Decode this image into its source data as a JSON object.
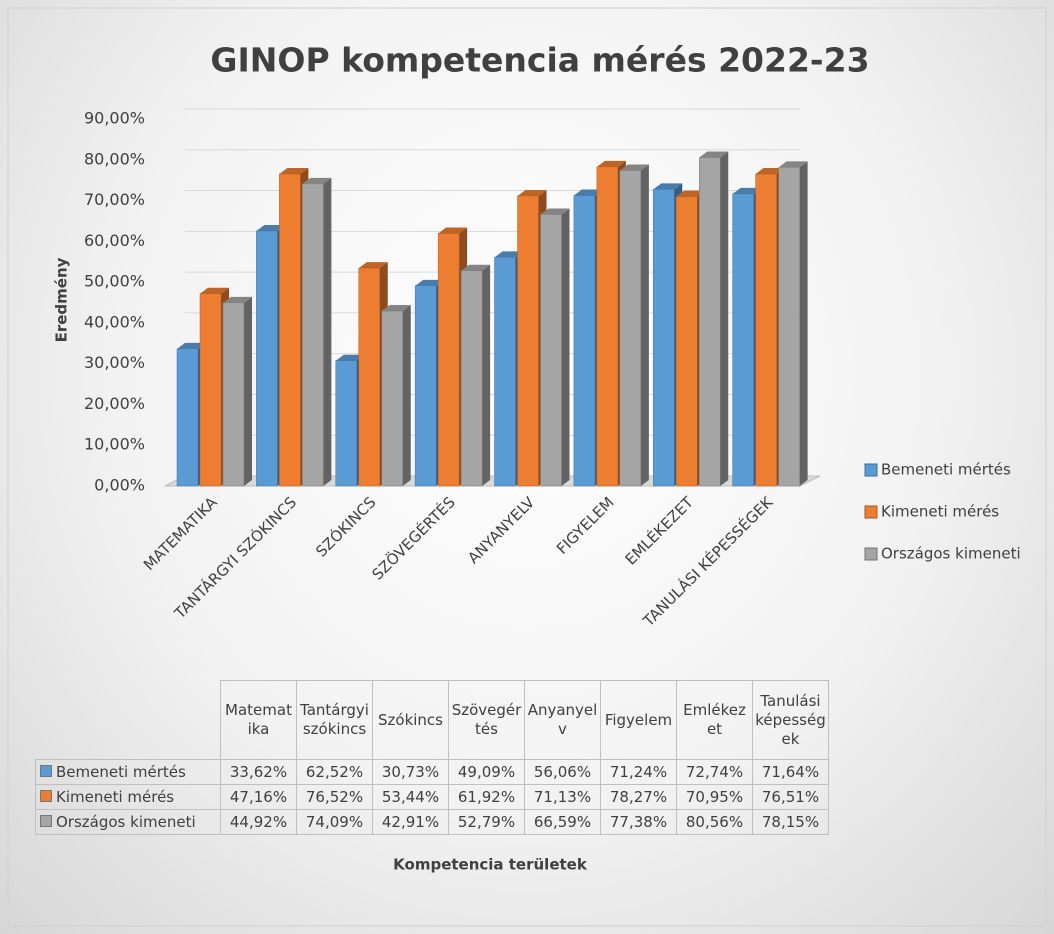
{
  "chart_data": {
    "type": "bar3d",
    "title": "GINOP kompetencia mérés 2022-23",
    "y_label": "Eredmény",
    "x_label": "Kompetencia területek",
    "categories": [
      "MATEMATIKA",
      "TANTÁRGYI SZÓKINCS",
      "SZÓKINCS",
      "SZÖVEGÉRTÉS",
      "ANYANYELV",
      "FIGYELEM",
      "EMLÉKEZET",
      "TANULÁSI KÉPESSÉGEK"
    ],
    "table_headers": [
      "Matematika",
      "Tantárgyi szókincs",
      "Szókincs",
      "Szövegértés",
      "Anyanyelv",
      "Figyelem",
      "Emlékezet",
      "Tanulási képességek"
    ],
    "series": [
      {
        "name": "Bemeneti mértés",
        "color": "#5b9bd5",
        "values": [
          33.62,
          62.52,
          30.73,
          49.09,
          56.06,
          71.24,
          72.74,
          71.64
        ],
        "value_labels": [
          "33,62%",
          "62,52%",
          "30,73%",
          "49,09%",
          "56,06%",
          "71,24%",
          "72,74%",
          "71,64%"
        ]
      },
      {
        "name": "Kimeneti mérés",
        "color": "#ed7d31",
        "values": [
          47.16,
          76.52,
          53.44,
          61.92,
          71.13,
          78.27,
          70.95,
          76.51
        ],
        "value_labels": [
          "47,16%",
          "76,52%",
          "53,44%",
          "61,92%",
          "71,13%",
          "78,27%",
          "70,95%",
          "76,51%"
        ]
      },
      {
        "name": "Országos kimeneti",
        "color": "#a5a5a5",
        "values": [
          44.92,
          74.09,
          42.91,
          52.79,
          66.59,
          77.38,
          80.56,
          78.15
        ],
        "value_labels": [
          "44,92%",
          "74,09%",
          "42,91%",
          "52,79%",
          "66,59%",
          "77,38%",
          "80,56%",
          "78,15%"
        ]
      }
    ],
    "ylim": [
      0,
      90
    ],
    "yticks": [
      {
        "value": 0,
        "label": "0,00%"
      },
      {
        "value": 10,
        "label": "10,00%"
      },
      {
        "value": 20,
        "label": "20,00%"
      },
      {
        "value": 30,
        "label": "30,00%"
      },
      {
        "value": 40,
        "label": "40,00%"
      },
      {
        "value": 50,
        "label": "50,00%"
      },
      {
        "value": 60,
        "label": "60,00%"
      },
      {
        "value": 70,
        "label": "70,00%"
      },
      {
        "value": 80,
        "label": "80,00%"
      },
      {
        "value": 90,
        "label": "90,00%"
      }
    ],
    "grid": true
  }
}
